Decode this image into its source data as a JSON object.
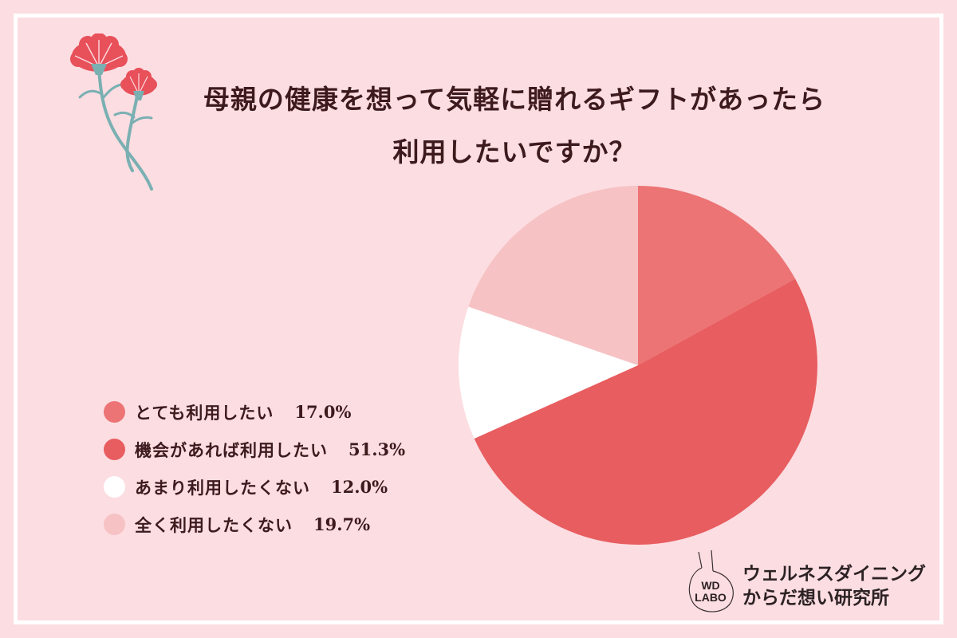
{
  "title": {
    "line1": "母親の健康を想って気軽に贈れるギフトがあったら",
    "line2": "利用したいですか？"
  },
  "colors": {
    "background": "#fcdde2",
    "frame": "#ffffff",
    "text": "#3d1a1d",
    "flower_petal": "#e8505a",
    "flower_stem": "#7ab0b2"
  },
  "legend": {
    "items": [
      {
        "label": "とても利用したい",
        "value": "17.0%",
        "color": "#ec7474"
      },
      {
        "label": "機会があれば利用したい",
        "value": "51.3%",
        "color": "#e85d5f"
      },
      {
        "label": "あまり利用したくない",
        "value": "12.0%",
        "color": "#ffffff"
      },
      {
        "label": "全く利用したくない",
        "value": "19.7%",
        "color": "#f6c2c4"
      }
    ]
  },
  "brand": {
    "logo_line1": "WD",
    "logo_line2": "LABO",
    "name_line1": "ウェルネスダイニング",
    "name_line2": "からだ想い研究所"
  },
  "chart_data": {
    "type": "pie",
    "title": "母親の健康を想って気軽に贈れるギフトがあったら利用したいですか？",
    "categories": [
      "とても利用したい",
      "機会があれば利用したい",
      "あまり利用したくない",
      "全く利用したくない"
    ],
    "values": [
      17.0,
      51.3,
      12.0,
      19.7
    ],
    "unit": "%",
    "colors": [
      "#ec7474",
      "#e85d5f",
      "#ffffff",
      "#f6c2c4"
    ],
    "start_angle": "12 o'clock",
    "direction": "clockwise",
    "legend_position": "left"
  }
}
